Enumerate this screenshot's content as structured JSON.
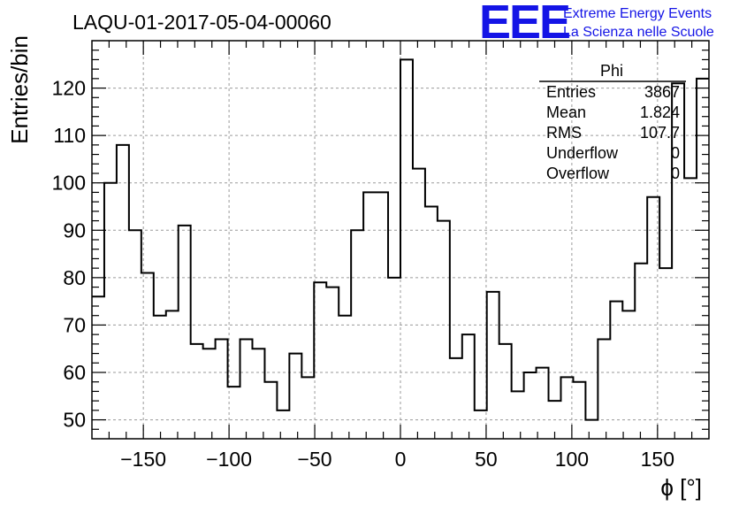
{
  "chart_data": {
    "type": "bar",
    "title": "LAQU-01-2017-05-04-00060",
    "xlabel": "ϕ [°]",
    "ylabel": "Entries/bin",
    "xlim": [
      -180,
      180
    ],
    "ylim": [
      46,
      130
    ],
    "bin_width": 7.2,
    "x_ticks": [
      -150,
      -100,
      -50,
      0,
      50,
      100,
      150
    ],
    "y_ticks": [
      50,
      60,
      70,
      80,
      90,
      100,
      110,
      120
    ],
    "grid": true,
    "values": [
      76,
      100,
      108,
      90,
      81,
      72,
      73,
      91,
      66,
      65,
      67,
      57,
      67,
      65,
      58,
      52,
      64,
      59,
      79,
      78,
      72,
      90,
      98,
      98,
      80,
      126,
      103,
      95,
      92,
      63,
      68,
      52,
      77,
      66,
      56,
      60,
      61,
      54,
      59,
      58,
      50,
      67,
      75,
      73,
      83,
      97,
      82,
      121,
      101,
      122
    ],
    "stats_box": {
      "title": "Phi",
      "rows": [
        {
          "label": "Entries",
          "value": "3867"
        },
        {
          "label": "Mean",
          "value": "1.824"
        },
        {
          "label": "RMS",
          "value": "107.7"
        },
        {
          "label": "Underflow",
          "value": "0"
        },
        {
          "label": "Overflow",
          "value": "0"
        }
      ]
    },
    "line_color": "#000000",
    "grid_color": "#9a9a9a"
  },
  "logo": {
    "mark": "EEE",
    "line1": "Extreme Energy Events",
    "line2": "La Scienza nelle Scuole",
    "color": "#1414e6"
  }
}
